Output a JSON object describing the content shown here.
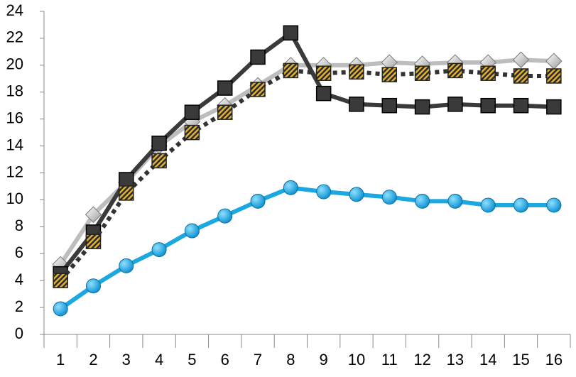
{
  "chart_data": {
    "type": "line",
    "categories": [
      1,
      2,
      3,
      4,
      5,
      6,
      7,
      8,
      9,
      10,
      11,
      12,
      13,
      14,
      15,
      16
    ],
    "series": [
      {
        "color": "#bdbdbd",
        "marker": "diamond",
        "dash": "solid",
        "values": [
          5.2,
          8.9,
          11.3,
          14,
          15.8,
          17,
          18.5,
          20,
          20,
          20,
          20.2,
          20.1,
          20.2,
          20.2,
          20.4,
          20.3
        ]
      },
      {
        "color": "#3a3a3a",
        "marker": "square",
        "dash": "solid",
        "values": [
          4.5,
          7.6,
          11.5,
          14.2,
          16.5,
          18.3,
          20.6,
          22.4,
          17.9,
          17.1,
          17,
          16.9,
          17.1,
          17,
          17,
          16.9
        ]
      },
      {
        "color": "#333333",
        "marker": "hatched-square",
        "dash": "dotted",
        "values": [
          4,
          6.9,
          10.5,
          12.9,
          15,
          16.5,
          18.2,
          19.6,
          19.4,
          19.5,
          19.3,
          19.4,
          19.6,
          19.4,
          19.2,
          19.2
        ]
      },
      {
        "color": "#1ba7e0",
        "marker": "circle",
        "dash": "solid",
        "values": [
          1.9,
          3.6,
          5.1,
          6.3,
          7.7,
          8.8,
          9.9,
          10.9,
          10.6,
          10.4,
          10.2,
          9.9,
          9.9,
          9.6,
          9.6,
          9.6
        ]
      }
    ],
    "ylim": [
      0,
      24
    ],
    "yticks": [
      0,
      2,
      4,
      6,
      8,
      10,
      12,
      14,
      16,
      18,
      20,
      22,
      24
    ],
    "grid": false
  }
}
